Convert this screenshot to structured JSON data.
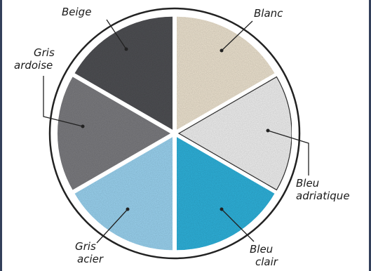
{
  "wheel": {
    "segments": [
      {
        "id": "beige",
        "lines": [
          "Beige"
        ],
        "color": "#ece2cf"
      },
      {
        "id": "blanc",
        "lines": [
          "Blanc"
        ],
        "color": "#efefef"
      },
      {
        "id": "bleu-adriatique",
        "lines": [
          "Bleu",
          "adriatique"
        ],
        "color": "#2fb1da"
      },
      {
        "id": "bleu-clair",
        "lines": [
          "Bleu",
          "clair"
        ],
        "color": "#9ad2ef"
      },
      {
        "id": "gris-acier",
        "lines": [
          "Gris",
          "acier"
        ],
        "color": "#7b7b7f"
      },
      {
        "id": "gris-ardoise",
        "lines": [
          "Gris",
          "ardoise"
        ],
        "color": "#4e4f53"
      }
    ]
  }
}
